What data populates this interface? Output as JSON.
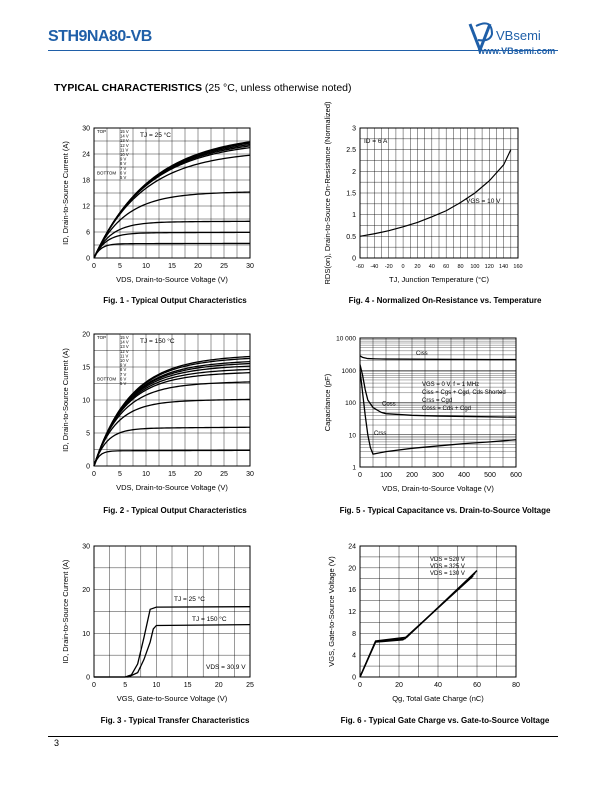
{
  "header": {
    "part_number": "STH9NA80-VB",
    "brand": "VBsemi",
    "website": "www.VBsemi.com"
  },
  "section": {
    "title": "TYPICAL CHARACTERISTICS",
    "note": " (25 °C, unless otherwise noted)"
  },
  "page_number": "3",
  "chart_data": [
    {
      "id": "fig1",
      "type": "line",
      "caption": "Fig. 1 - Typical Output Characteristics",
      "xlabel": "VDS, Drain-to-Source Voltage (V)",
      "ylabel": "ID, Drain-to-Source Current (A)",
      "xlim": [
        0,
        30
      ],
      "ylim": [
        0,
        30
      ],
      "xticks": [
        0,
        5,
        10,
        15,
        20,
        25,
        30
      ],
      "yticks": [
        0,
        6,
        12,
        18,
        24,
        30
      ],
      "annotation": "TJ = 25 °C",
      "legend_top": "TOP",
      "legend_bottom": "BOTTOM",
      "legend_entries": [
        "15 V",
        "14 V",
        "13 V",
        "12 V",
        "11 V",
        "10 V",
        "9 V",
        "8 V",
        "7 V",
        "6 V",
        "5 V"
      ],
      "series": [
        {
          "values_sat": 28.0
        },
        {
          "values_sat": 27.8
        },
        {
          "values_sat": 27.6
        },
        {
          "values_sat": 27.2
        },
        {
          "values_sat": 26.8
        },
        {
          "values_sat": 26.3
        },
        {
          "values_sat": 24.2
        },
        {
          "values_sat": 15.0
        },
        {
          "values_sat": 8.3
        },
        {
          "values_sat": 5.8
        },
        {
          "values_sat": 3.3
        }
      ],
      "grid": true
    },
    {
      "id": "fig2",
      "type": "line",
      "caption": "Fig. 2 - Typical Output Characteristics",
      "xlabel": "VDS, Drain-to-Source Voltage (V)",
      "ylabel": "ID, Drain-to-Source Current (A)",
      "xlim": [
        0,
        30
      ],
      "ylim": [
        0,
        20
      ],
      "xticks": [
        0,
        5,
        10,
        15,
        20,
        25,
        30
      ],
      "yticks": [
        0,
        5,
        10,
        15,
        20
      ],
      "annotation": "TJ = 150 °C",
      "legend_top": "TOP",
      "legend_bottom": "BOTTOM",
      "legend_entries": [
        "15 V",
        "14 V",
        "13 V",
        "12 V",
        "11 V",
        "10 V",
        "9 V",
        "8 V",
        "7 V",
        "6 V",
        "5 V"
      ],
      "series": [
        {
          "values_sat": 16.3
        },
        {
          "values_sat": 16.0
        },
        {
          "values_sat": 15.5
        },
        {
          "values_sat": 15.2
        },
        {
          "values_sat": 14.8
        },
        {
          "values_sat": 14.3
        },
        {
          "values_sat": 13.8
        },
        {
          "values_sat": 12.4
        },
        {
          "values_sat": 9.8
        },
        {
          "values_sat": 5.7
        },
        {
          "values_sat": 2.3
        }
      ],
      "grid": true
    },
    {
      "id": "fig3",
      "type": "line",
      "caption": "Fig. 3 - Typical Transfer Characteristics",
      "xlabel": "VGS, Gate-to-Source Voltage (V)",
      "ylabel": "ID, Drain-to-Source Current (A)",
      "xlim": [
        0,
        25
      ],
      "ylim": [
        0,
        30
      ],
      "xticks": [
        0,
        5,
        10,
        15,
        20,
        25
      ],
      "yticks": [
        0,
        10,
        20,
        30
      ],
      "annotation_25": "TJ = 25 °C",
      "annotation_150": "TJ = 150 °C",
      "annotation_vds": "VDS = 30.9 V",
      "series": [
        {
          "x": [
            0,
            5,
            6,
            7,
            8,
            9,
            10,
            25
          ],
          "y": [
            0,
            0,
            0.5,
            3,
            9,
            15.5,
            16,
            16.1
          ]
        },
        {
          "x": [
            0,
            5.5,
            7,
            8,
            9,
            9.5,
            10,
            25
          ],
          "y": [
            0,
            0,
            1,
            4,
            8,
            11,
            11.8,
            12
          ]
        }
      ],
      "grid": true
    },
    {
      "id": "fig4",
      "type": "line",
      "caption": "Fig. 4 - Normalized On-Resistance vs. Temperature",
      "xlabel": "TJ, Junction Temperature (°C)",
      "ylabel": "RDS(on), Drain-to-Source On-Resistance (Normalized)",
      "xlim": [
        -60,
        160
      ],
      "ylim": [
        0,
        3
      ],
      "xticks": [
        -60,
        -40,
        -20,
        0,
        20,
        40,
        60,
        80,
        100,
        120,
        140,
        160
      ],
      "yticks": [
        0,
        0.5,
        1,
        1.5,
        2,
        2.5,
        3
      ],
      "annotation_id": "ID = 6 A",
      "annotation_vgs": "VGS = 10 V",
      "series": [
        {
          "x": [
            -60,
            -40,
            -20,
            0,
            20,
            40,
            60,
            80,
            100,
            120,
            140,
            150
          ],
          "y": [
            0.5,
            0.56,
            0.63,
            0.72,
            0.82,
            0.95,
            1.09,
            1.28,
            1.5,
            1.78,
            2.15,
            2.5
          ]
        }
      ],
      "grid": true
    },
    {
      "id": "fig5",
      "type": "line",
      "caption": "Fig. 5 - Typical Capacitance vs. Drain-to-Source Voltage",
      "xlabel": "VDS, Drain-to-Source Voltage (V)",
      "ylabel": "Capacitance (pF)",
      "xlim": [
        0,
        600
      ],
      "ylim_log": [
        1,
        10000
      ],
      "yscale": "log",
      "xticks": [
        0,
        100,
        200,
        300,
        400,
        500,
        600
      ],
      "yticks": [
        "1",
        "10",
        "100",
        "1000",
        "10 000"
      ],
      "labels": [
        "Ciss",
        "Coss",
        "Crss"
      ],
      "legend_lines": [
        "VGS = 0 V, f = 1 MHz",
        "Ciss = Cgs + Cgd, Cds Shorted",
        "Crss = Cgd",
        "Coss = Cds + Cgd"
      ],
      "series": [
        {
          "name": "Ciss",
          "x": [
            0,
            10,
            30,
            60,
            100,
            200,
            300,
            400,
            500,
            600
          ],
          "y": [
            2800,
            2500,
            2300,
            2250,
            2220,
            2200,
            2180,
            2170,
            2160,
            2150
          ]
        },
        {
          "name": "Coss",
          "x": [
            0,
            10,
            20,
            30,
            50,
            80,
            100,
            200,
            300,
            400,
            500,
            600
          ],
          "y": [
            1500,
            700,
            250,
            120,
            70,
            50,
            45,
            40,
            38,
            37,
            36,
            35
          ]
        },
        {
          "name": "Crss",
          "x": [
            0,
            10,
            20,
            30,
            40,
            50,
            100,
            200,
            300,
            400,
            500,
            600
          ],
          "y": [
            1000,
            200,
            40,
            10,
            4,
            2.5,
            3,
            3.8,
            4.5,
            5.3,
            6,
            7
          ]
        }
      ],
      "grid": true
    },
    {
      "id": "fig6",
      "type": "line",
      "caption": "Fig. 6 - Typical Gate Charge vs. Gate-to-Source Voltage",
      "xlabel": "Qg, Total Gate Charge (nC)",
      "ylabel": "VGS, Gate-to-Source Voltage (V)",
      "xlim": [
        0,
        80
      ],
      "ylim": [
        0,
        24
      ],
      "xticks": [
        0,
        20,
        40,
        60,
        80
      ],
      "yticks": [
        0,
        4,
        8,
        12,
        16,
        20,
        24
      ],
      "legend_lines": [
        "VDS = 520 V",
        "VDS = 325 V",
        "VDS = 130 V"
      ],
      "series": [
        {
          "name": "VDS = 520 V",
          "x": [
            0,
            8,
            24,
            60
          ],
          "y": [
            0,
            6.6,
            7.3,
            19.5
          ]
        },
        {
          "name": "VDS = 325 V",
          "x": [
            0,
            8,
            23,
            59
          ],
          "y": [
            0,
            6.5,
            7.0,
            19.0
          ]
        },
        {
          "name": "VDS = 130 V",
          "x": [
            0,
            8,
            22,
            58
          ],
          "y": [
            0,
            6.4,
            6.8,
            18.5
          ]
        }
      ],
      "grid": true
    }
  ]
}
